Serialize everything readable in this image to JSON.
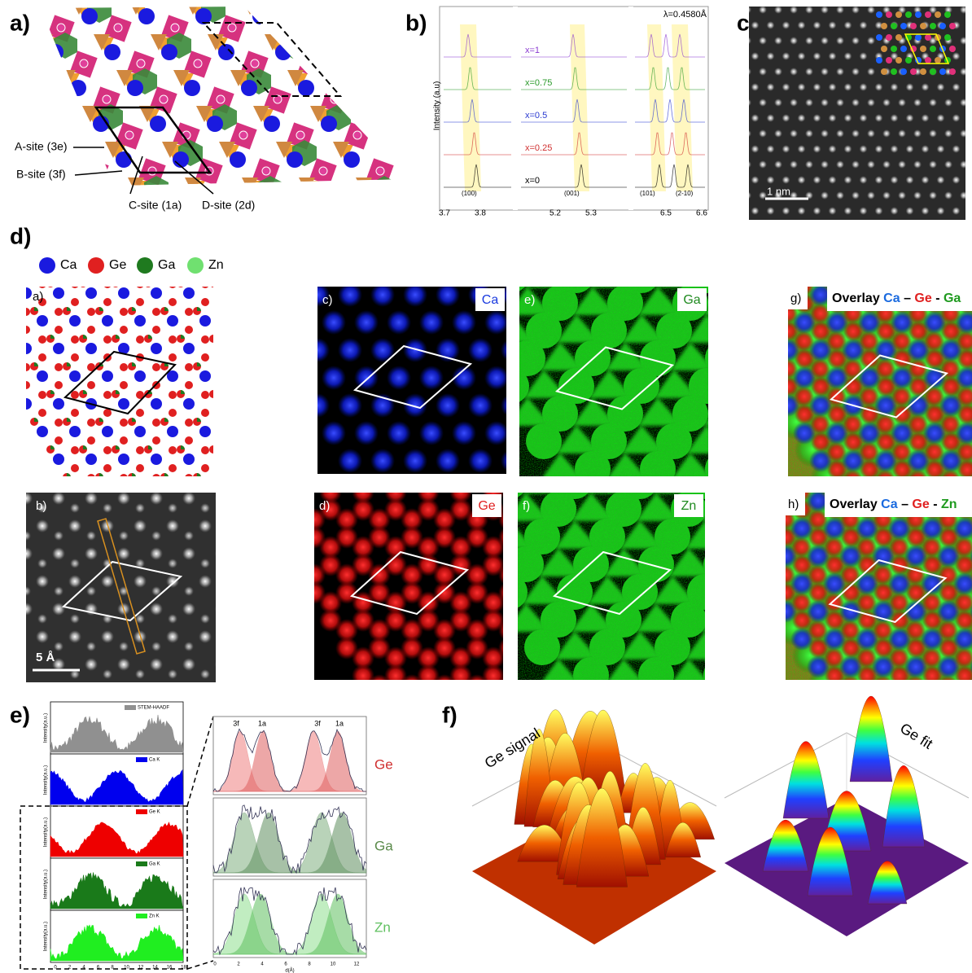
{
  "panels": {
    "a": {
      "label": "a)",
      "sites": [
        "A-site (3e)",
        "B-site (3f)",
        "C-site (1a)",
        "D-site (2d)"
      ]
    },
    "b": {
      "label": "b)",
      "wavelength": "λ=0.4580Å",
      "y_label": "Intensity (a.u)",
      "series": [
        "x=1",
        "x=0.75",
        "x=0.5",
        "x=0.25",
        "x=0"
      ],
      "peaks": [
        "(100)",
        "(001)",
        "(101)",
        "(2-10)"
      ],
      "x_ticks": [
        "3.7",
        "3.8",
        "5.2",
        "5.3",
        "6.5",
        "6.6"
      ]
    },
    "c": {
      "label": "c)",
      "scale_bar": "1 nm"
    },
    "d": {
      "label": "d)",
      "legend": [
        "Ca",
        "Ge",
        "Ga",
        "Zn"
      ],
      "subpanels": [
        {
          "label": "a)"
        },
        {
          "label": "b)",
          "scale_bar": "5 Å"
        },
        {
          "label": "c)",
          "element": "Ca"
        },
        {
          "label": "d)",
          "element": "Ge"
        },
        {
          "label": "e)",
          "element": "Ga"
        },
        {
          "label": "f)",
          "element": "Zn"
        },
        {
          "label": "g)",
          "overlay": [
            "Overlay",
            "Ca",
            "–",
            "Ge",
            "-",
            "Ga"
          ]
        },
        {
          "label": "h)",
          "overlay": [
            "Overlay",
            "Ca",
            "–",
            "Ge",
            "-",
            "Zn"
          ]
        }
      ]
    },
    "e": {
      "label": "e)",
      "profiles": [
        "STEM-HAADF",
        "Ca K",
        "Ge K",
        "Ga K",
        "Zn K"
      ],
      "y_label": "Intensity(a.u.)",
      "fit_labels": [
        "3f",
        "1a",
        "3f",
        "1a"
      ],
      "elements": [
        "Ge",
        "Ga",
        "Zn"
      ],
      "left_x_ticks": [
        "0",
        "2",
        "4",
        "6",
        "8",
        "10",
        "12",
        "14",
        "16",
        "18"
      ],
      "right_x_ticks": [
        "0",
        "2",
        "4",
        "6",
        "8",
        "10",
        "12"
      ],
      "x_label": "d(Å)"
    },
    "f": {
      "label": "f)",
      "surfaces": [
        "Ge signal",
        "Ge fit"
      ]
    }
  }
}
